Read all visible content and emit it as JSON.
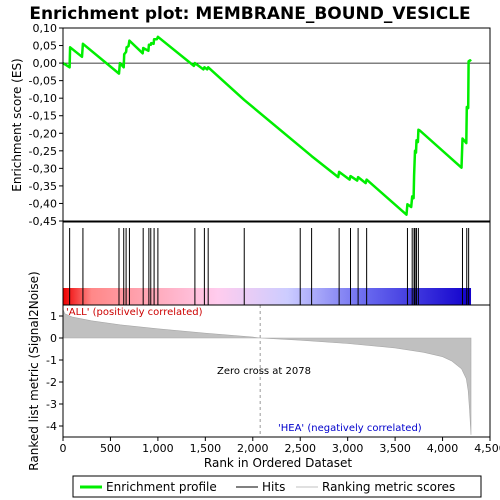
{
  "chart_data": {
    "type": "line",
    "title": "Enrichment plot: MEMBRANE_BOUND_VESICLE",
    "enrichment_panel": {
      "ylabel": "Enrichment score (ES)",
      "ylim": [
        -0.45,
        0.1
      ],
      "yticks": [
        "0,10",
        "0,05",
        "0,00",
        "-0,05",
        "-0,10",
        "-0,15",
        "-0,20",
        "-0,25",
        "-0,30",
        "-0,35",
        "-0,40",
        "-0,45"
      ],
      "ytick_values": [
        0.1,
        0.05,
        0.0,
        -0.05,
        -0.1,
        -0.15,
        -0.2,
        -0.25,
        -0.3,
        -0.35,
        -0.4,
        -0.45
      ],
      "series": [
        {
          "name": "Enrichment profile",
          "color": "#00ee00",
          "x": [
            0,
            70,
            75,
            200,
            210,
            590,
            600,
            640,
            645,
            665,
            670,
            690,
            700,
            840,
            845,
            900,
            905,
            925,
            930,
            955,
            960,
            990,
            1000,
            1380,
            1390,
            1480,
            1490,
            1520,
            1530,
            1910,
            2500,
            2620,
            2900,
            2910,
            3020,
            3030,
            3100,
            3110,
            3190,
            3200,
            3620,
            3630,
            3670,
            3680,
            3695,
            3700,
            3710,
            3720,
            3725,
            3740,
            3745,
            3760,
            4200,
            4210,
            4250,
            4255,
            4270,
            4275,
            4290,
            4300
          ],
          "y": [
            0.0,
            -0.012,
            0.045,
            0.018,
            0.055,
            -0.03,
            0.0,
            -0.012,
            0.025,
            0.032,
            0.045,
            0.048,
            0.064,
            0.028,
            0.043,
            0.035,
            0.052,
            0.052,
            0.057,
            0.055,
            0.068,
            0.068,
            0.075,
            -0.008,
            0.0,
            -0.018,
            -0.012,
            -0.018,
            -0.012,
            -0.105,
            -0.238,
            -0.265,
            -0.325,
            -0.31,
            -0.332,
            -0.322,
            -0.335,
            -0.325,
            -0.342,
            -0.332,
            -0.432,
            -0.402,
            -0.41,
            -0.38,
            -0.385,
            -0.32,
            -0.25,
            -0.255,
            -0.22,
            -0.225,
            -0.19,
            -0.192,
            -0.298,
            -0.215,
            -0.228,
            -0.125,
            -0.128,
            0.005,
            0.008,
            0.005
          ]
        }
      ]
    },
    "hits_panel": {
      "hit_positions": [
        70,
        210,
        590,
        640,
        665,
        700,
        845,
        905,
        925,
        960,
        1000,
        1390,
        1490,
        1530,
        1910,
        2500,
        2620,
        2910,
        3030,
        3110,
        3200,
        3630,
        3680,
        3700,
        3710,
        3725,
        3745,
        4210,
        4255,
        4275
      ],
      "bar_gradient": [
        "#ee0000",
        "#ff8888",
        "#ffccee",
        "#ccccff",
        "#6666ee",
        "#1100cc"
      ]
    },
    "metric_panel": {
      "ylabel": "Ranked list metric (Signal2Noise)",
      "ylim": [
        -4.5,
        1.5
      ],
      "yticks": [
        "1",
        "0",
        "-1",
        "-2",
        "-3",
        "-4"
      ],
      "ytick_values": [
        1,
        0,
        -1,
        -2,
        -3,
        -4
      ],
      "x": [
        0,
        20,
        100,
        300,
        600,
        1000,
        1500,
        2000,
        2078,
        2500,
        3000,
        3500,
        3800,
        4000,
        4100,
        4200,
        4250,
        4270,
        4285,
        4300
      ],
      "y": [
        1.3,
        1.1,
        0.95,
        0.78,
        0.6,
        0.42,
        0.22,
        0.04,
        0.0,
        -0.1,
        -0.25,
        -0.45,
        -0.65,
        -0.85,
        -1.05,
        -1.4,
        -1.85,
        -2.4,
        -3.3,
        -4.4
      ],
      "positive_label": "'ALL' (positively correlated)",
      "negative_label": "'HEA' (negatively correlated)",
      "zero_cross_label": "Zero cross at 2078",
      "zero_cross": 2078
    },
    "xaxis": {
      "label": "Rank in Ordered Dataset",
      "xlim": [
        0,
        4500
      ],
      "ticks": [
        "0",
        "500",
        "1,000",
        "1,500",
        "2,000",
        "2,500",
        "3,000",
        "3,500",
        "4,000",
        "4,500"
      ],
      "tick_values": [
        0,
        500,
        1000,
        1500,
        2000,
        2500,
        3000,
        3500,
        4000,
        4500
      ]
    },
    "legend": [
      {
        "label": "Enrichment profile",
        "color": "#00ee00"
      },
      {
        "label": "Hits",
        "color": "#000000"
      },
      {
        "label": "Ranking metric scores",
        "color": "#c0c0c0"
      }
    ]
  }
}
